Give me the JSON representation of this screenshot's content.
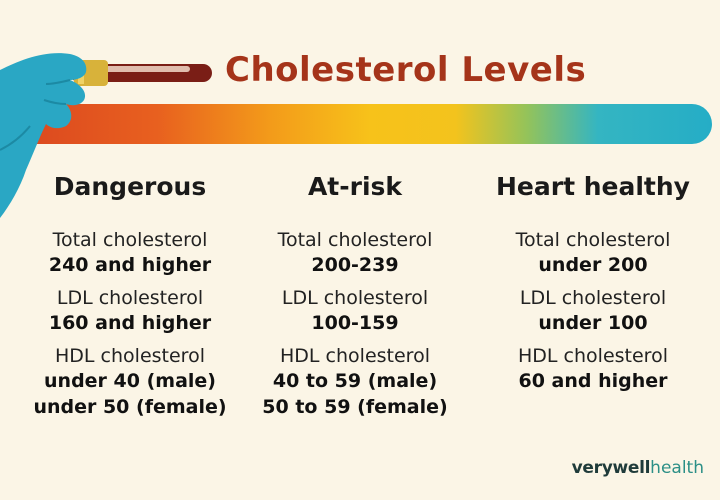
{
  "title": "Cholesterol Levels",
  "colors": {
    "title": "#a5341a",
    "background": "#fbf5e6",
    "glove": "#2aa7c4",
    "tube_cap": "#d8b23a",
    "blood": "#7a1e16"
  },
  "icons": [
    "gloved-hand-icon",
    "blood-test-tube-icon"
  ],
  "columns": [
    {
      "heading": "Dangerous",
      "metrics": [
        {
          "label": "Total cholesterol",
          "values": [
            "240 and higher"
          ]
        },
        {
          "label": "LDL cholesterol",
          "values": [
            "160 and higher"
          ]
        },
        {
          "label": "HDL cholesterol",
          "values": [
            "under 40 (male)",
            "under 50 (female)"
          ]
        }
      ]
    },
    {
      "heading": "At-risk",
      "metrics": [
        {
          "label": "Total cholesterol",
          "values": [
            "200-239"
          ]
        },
        {
          "label": "LDL cholesterol",
          "values": [
            "100-159"
          ]
        },
        {
          "label": "HDL cholesterol",
          "values": [
            "40 to 59 (male)",
            "50 to 59 (female)"
          ]
        }
      ]
    },
    {
      "heading": "Heart healthy",
      "metrics": [
        {
          "label": "Total cholesterol",
          "values": [
            "under 200"
          ]
        },
        {
          "label": "LDL cholesterol",
          "values": [
            "under 100"
          ]
        },
        {
          "label": "HDL cholesterol",
          "values": [
            "60 and higher"
          ]
        }
      ]
    }
  ],
  "brand": {
    "part1": "verywell",
    "part2": "health"
  }
}
